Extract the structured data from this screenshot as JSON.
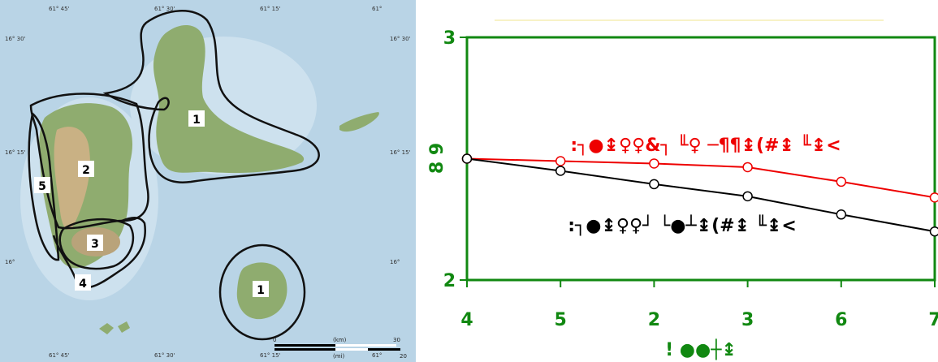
{
  "colors": {
    "axis": "#118811",
    "series_red": "#ee0000",
    "series_black": "#000000",
    "sea": "#b9d4e6",
    "land": "#8fac6f",
    "mountain": "#c9b184"
  },
  "map": {
    "top_ticks": [
      "61° 45'",
      "61° 30'",
      "61° 15'",
      "61°"
    ],
    "bottom_ticks": [
      "61° 45'",
      "61° 30'",
      "61° 15'",
      "61°"
    ],
    "left_ticks": [
      "16° 30'",
      "16° 15'",
      "16°"
    ],
    "right_ticks": [
      "16° 30'",
      "16° 15'",
      "16°"
    ],
    "zone_labels": [
      "1",
      "1",
      "2",
      "3",
      "4",
      "5"
    ],
    "scale": {
      "km_label": "(km)",
      "mi_label": "(mi)",
      "start": "0",
      "km_end": "30",
      "mi_end": "20"
    }
  },
  "chart_data": {
    "type": "line",
    "categories": [
      "4",
      "5",
      "2",
      "3",
      "6",
      "7"
    ],
    "series": [
      {
        "name": ":┐●↨♀♀&┐ ╙♀ ─¶¶↨(#↨ ╙↨<",
        "color": "#ee0000",
        "values": [
          2.5,
          2.49,
          2.48,
          2.465,
          2.405,
          2.34
        ]
      },
      {
        "name": ":┐●↨♀♀┘ └●┴↨(#↨ ╙↨<",
        "color": "#000000",
        "values": [
          2.5,
          2.45,
          2.395,
          2.345,
          2.27,
          2.2
        ]
      }
    ],
    "ylim": [
      2,
      3
    ],
    "yticks": [
      "3",
      "2"
    ],
    "ylabel": "8 9",
    "xlabel": "! ●●┼↨",
    "title": "",
    "grid": false,
    "legend": "inline"
  }
}
